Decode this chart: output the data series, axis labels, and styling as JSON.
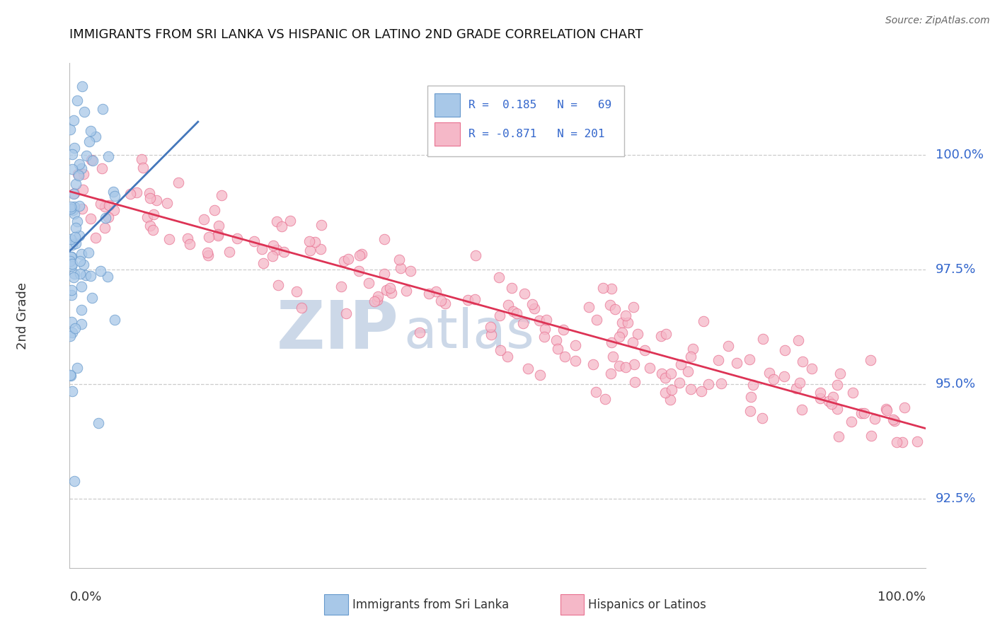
{
  "title": "IMMIGRANTS FROM SRI LANKA VS HISPANIC OR LATINO 2ND GRADE CORRELATION CHART",
  "source": "Source: ZipAtlas.com",
  "ylabel": "2nd Grade",
  "right_yticks": [
    92.5,
    95.0,
    97.5,
    100.0
  ],
  "right_ytick_labels": [
    "92.5%",
    "95.0%",
    "97.5%",
    "100.0%"
  ],
  "xlim": [
    0.0,
    100.0
  ],
  "ylim": [
    91.0,
    102.0
  ],
  "blue_R": 0.185,
  "blue_N": 69,
  "pink_R": -0.871,
  "pink_N": 201,
  "blue_color": "#a8c8e8",
  "pink_color": "#f5b8c8",
  "blue_edge_color": "#6699cc",
  "pink_edge_color": "#e87090",
  "blue_line_color": "#4477bb",
  "pink_line_color": "#dd3355",
  "legend_text_color": "#3366cc",
  "title_color": "#111111",
  "source_color": "#666666",
  "axis_label_color": "#333333",
  "right_tick_color": "#3366cc",
  "watermark_color": "#ccd8e8",
  "grid_color": "#cccccc",
  "background_color": "#ffffff",
  "seed": 42
}
